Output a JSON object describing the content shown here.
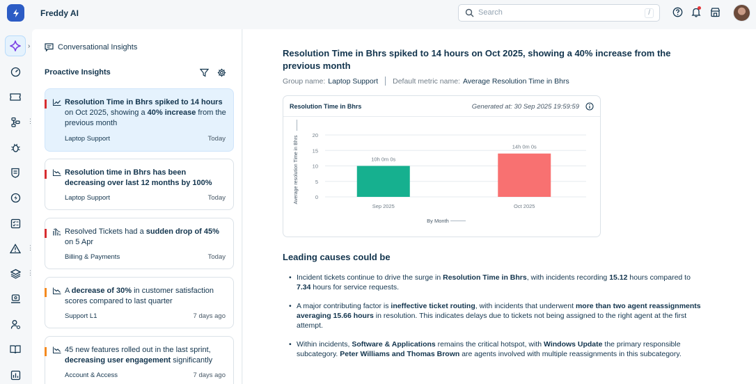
{
  "app": {
    "title": "Freddy AI"
  },
  "search": {
    "placeholder": "Search",
    "shortcut": "/"
  },
  "header_icons": [
    "help-icon",
    "notification-bell-icon",
    "store-icon",
    "user-avatar"
  ],
  "rail": {
    "items": [
      "freddy-sparkle-icon",
      "dashboard-icon",
      "tickets-icon",
      "workflow-icon",
      "problems-icon",
      "changes-icon",
      "releases-icon",
      "tasks-icon",
      "alerts-icon",
      "assets-icon",
      "admin-icon",
      "contacts-icon",
      "solutions-icon",
      "reports-icon"
    ],
    "expand_glyph": "›"
  },
  "panel": {
    "conversational_label": "Conversational Insights",
    "proactive_title": "Proactive Insights",
    "cards": [
      {
        "pre": "Resolution Time in Bhrs spiked to 14 hours",
        "pre_bold": true,
        "mid": " on Oct 2025, showing a ",
        "bold": "40% increase",
        "post": " from the previous month",
        "group": "Laptop Support",
        "date": "Today",
        "flag_color": "#d72d30"
      },
      {
        "pre": "Resolution time in Bhrs has been decreasing over last 12 months by 100%",
        "pre_bold": true,
        "mid": "",
        "bold": "",
        "post": "",
        "group": "Laptop Support",
        "date": "Today",
        "flag_color": "#d72d30"
      },
      {
        "pre": "Resolved Tickets had a ",
        "pre_bold": false,
        "mid": "",
        "bold": "sudden drop of 45%",
        "post": " on 5 Apr",
        "group": "Billing & Payments",
        "date": "Today",
        "flag_color": "#d72d30"
      },
      {
        "pre": "A ",
        "pre_bold": false,
        "mid": "",
        "bold": "decrease of 30%",
        "post": " in customer satisfaction scores compared to last quarter",
        "group": "Support L1",
        "date": "7 days ago",
        "flag_color": "#f48a20"
      },
      {
        "pre": "45 new features rolled out in the last sprint, ",
        "pre_bold": false,
        "mid": "",
        "bold": "decreasing user engagement",
        "post": " significantly",
        "group": "Account & Access",
        "date": "7 days ago",
        "flag_color": "#f48a20"
      }
    ]
  },
  "main": {
    "headline": "Resolution Time in Bhrs spiked to 14 hours on Oct 2025, showing a 40% increase from the previous month",
    "group_label": "Group name:",
    "group_value": "Laptop Support",
    "metric_label": "Default metric name:",
    "metric_value": "Average Resolution Time in Bhrs",
    "chart_title": "Resolution Time in Bhrs",
    "generated_at": "Generated at: 30 Sep 2025 19:59:59",
    "causes_title": "Leading causes could be",
    "causes": [
      [
        {
          "t": "Incident tickets continue to drive the surge in "
        },
        {
          "t": "Resolution Time in Bhrs",
          "b": true
        },
        {
          "t": ", with incidents recording "
        },
        {
          "t": "15.12",
          "b": true
        },
        {
          "t": " hours compared to "
        },
        {
          "t": "7.34",
          "b": true
        },
        {
          "t": " hours for service requests."
        }
      ],
      [
        {
          "t": "A major contributing factor is "
        },
        {
          "t": "ineffective ticket routing",
          "b": true
        },
        {
          "t": ", with incidents that underwent "
        },
        {
          "t": "more than two agent reassignments averaging 15.66 hours",
          "b": true
        },
        {
          "t": " in resolution. This indicates delays due to tickets not being assigned to the right agent at the first attempt."
        }
      ],
      [
        {
          "t": "Within incidents, "
        },
        {
          "t": "Software & Applications",
          "b": true
        },
        {
          "t": " remains the critical hotspot, with "
        },
        {
          "t": "Windows Update",
          "b": true
        },
        {
          "t": " the primary responsible subcategory. "
        },
        {
          "t": "Peter Williams and Thomas Brown",
          "b": true
        },
        {
          "t": " are agents involved with multiple reassignments in this subcategory."
        }
      ]
    ]
  },
  "chart_data": {
    "type": "bar",
    "title": "Resolution Time in Bhrs",
    "categories": [
      "Sep 2025",
      "Oct 2025"
    ],
    "values": [
      10,
      14
    ],
    "data_labels": [
      "10h 0m 0s",
      "14h 0m 0s"
    ],
    "colors": [
      "#16b08f",
      "#f87171"
    ],
    "xlabel": "By Month",
    "ylabel": "Average resolution Time in Bhrs",
    "yticks": [
      0,
      5,
      10,
      15,
      20
    ],
    "ylim": [
      0,
      20
    ],
    "grid": true
  }
}
